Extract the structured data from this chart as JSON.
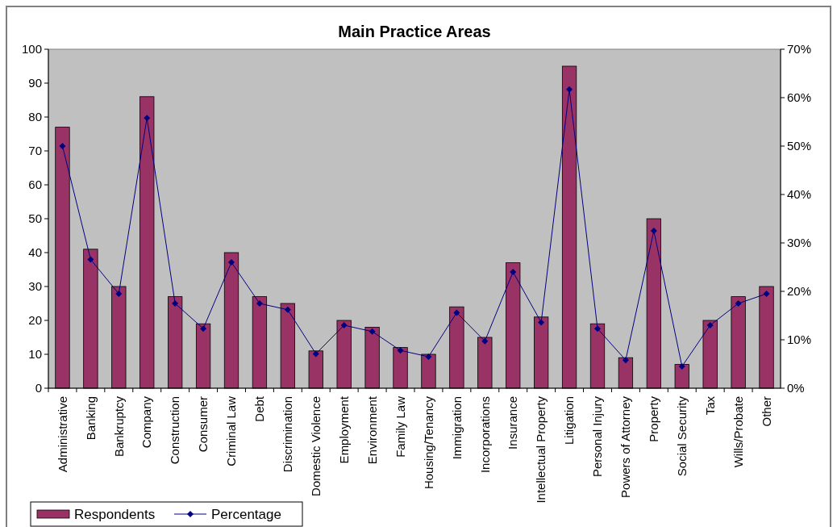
{
  "chart_data": {
    "type": "bar",
    "title": "Main Practice Areas",
    "categories": [
      "Administrative",
      "Banking",
      "Bankruptcy",
      "Company",
      "Construction",
      "Consumer",
      "Criminal Law",
      "Debt",
      "Discrimination",
      "Domestic Violence",
      "Employment",
      "Environment",
      "Family Law",
      "Housing/Tenancy",
      "Immigration",
      "Incorporations",
      "Insurance",
      "Intellectual Property",
      "Litigation",
      "Personal Injury",
      "Powers of Attorney",
      "Property",
      "Social Security",
      "Tax",
      "Wills/Probate",
      "Other"
    ],
    "series": [
      {
        "name": "Respondents",
        "color": "#993366",
        "values": [
          77,
          41,
          30,
          86,
          27,
          19,
          40,
          27,
          25,
          11,
          20,
          18,
          12,
          10,
          24,
          15,
          37,
          21,
          95,
          19,
          9,
          50,
          7,
          20,
          27,
          30
        ]
      },
      {
        "name": "Percentage",
        "type": "line",
        "axis": "y2",
        "color": "#000080",
        "marker": "diamond",
        "values": [
          50.0,
          26.6,
          19.5,
          55.8,
          17.5,
          12.3,
          26.0,
          17.5,
          16.2,
          7.1,
          13.0,
          11.7,
          7.8,
          6.5,
          15.6,
          9.7,
          24.0,
          13.6,
          61.7,
          12.3,
          5.8,
          32.5,
          4.5,
          13.0,
          17.5,
          19.5
        ]
      }
    ],
    "ylim": [
      0,
      100
    ],
    "yticks": [
      0,
      10,
      20,
      30,
      40,
      50,
      60,
      70,
      80,
      90,
      100
    ],
    "y2lim": [
      0,
      70
    ],
    "y2ticks": [
      {
        "value": 0,
        "label": "0%"
      },
      {
        "value": 10,
        "label": "10%"
      },
      {
        "value": 20,
        "label": "20%"
      },
      {
        "value": 30,
        "label": "30%"
      },
      {
        "value": 40,
        "label": "40%"
      },
      {
        "value": 50,
        "label": "50%"
      },
      {
        "value": 60,
        "label": "60%"
      },
      {
        "value": 70,
        "label": "70%"
      }
    ],
    "grid": false,
    "legend": "bottom left"
  }
}
